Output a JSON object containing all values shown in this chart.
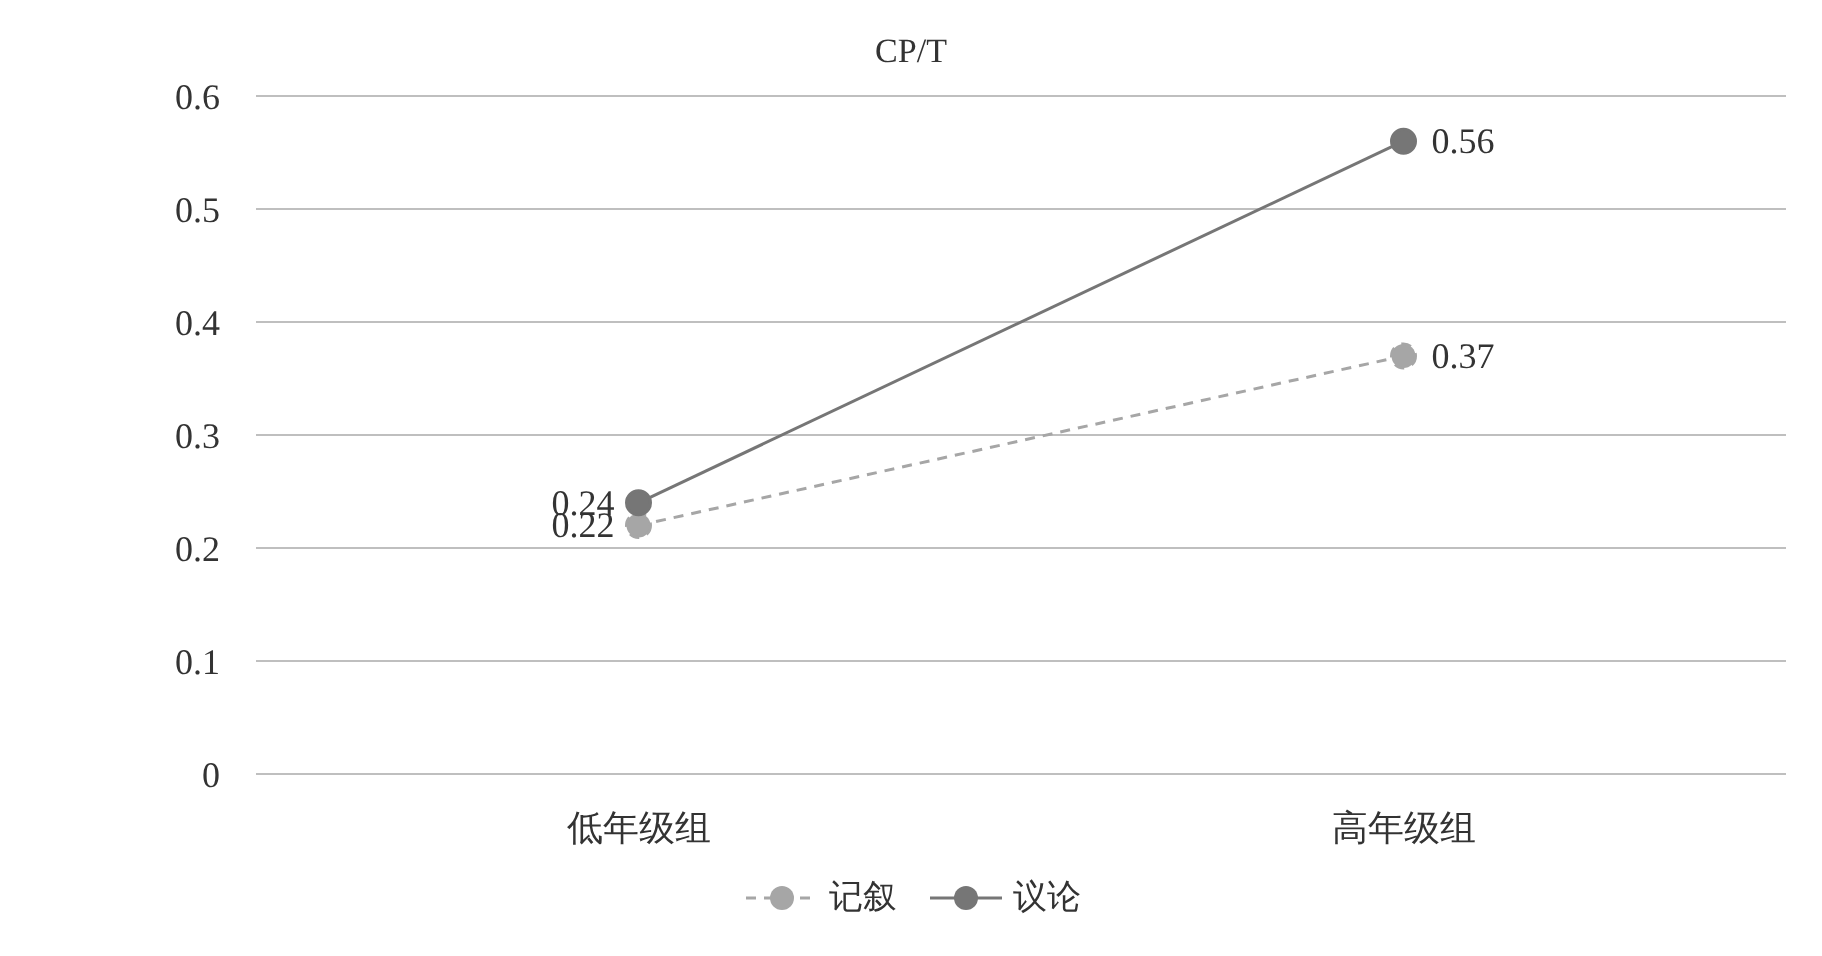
{
  "chart_data": {
    "type": "line",
    "title": "CP/T",
    "categories": [
      "低年级组",
      "高年级组"
    ],
    "series": [
      {
        "name": "记叙",
        "color": "#a6a6a6",
        "values": [
          0.22,
          0.37
        ],
        "line_style": "dashed"
      },
      {
        "name": "议论",
        "color": "#767676",
        "values": [
          0.24,
          0.56
        ],
        "line_style": "solid"
      }
    ],
    "ylim": [
      0,
      0.6
    ],
    "yticks": [
      0,
      0.1,
      0.2,
      0.3,
      0.4,
      0.5,
      0.6
    ],
    "grid": "y",
    "legend": "bottom",
    "marker": "circle",
    "data_labels": true
  }
}
